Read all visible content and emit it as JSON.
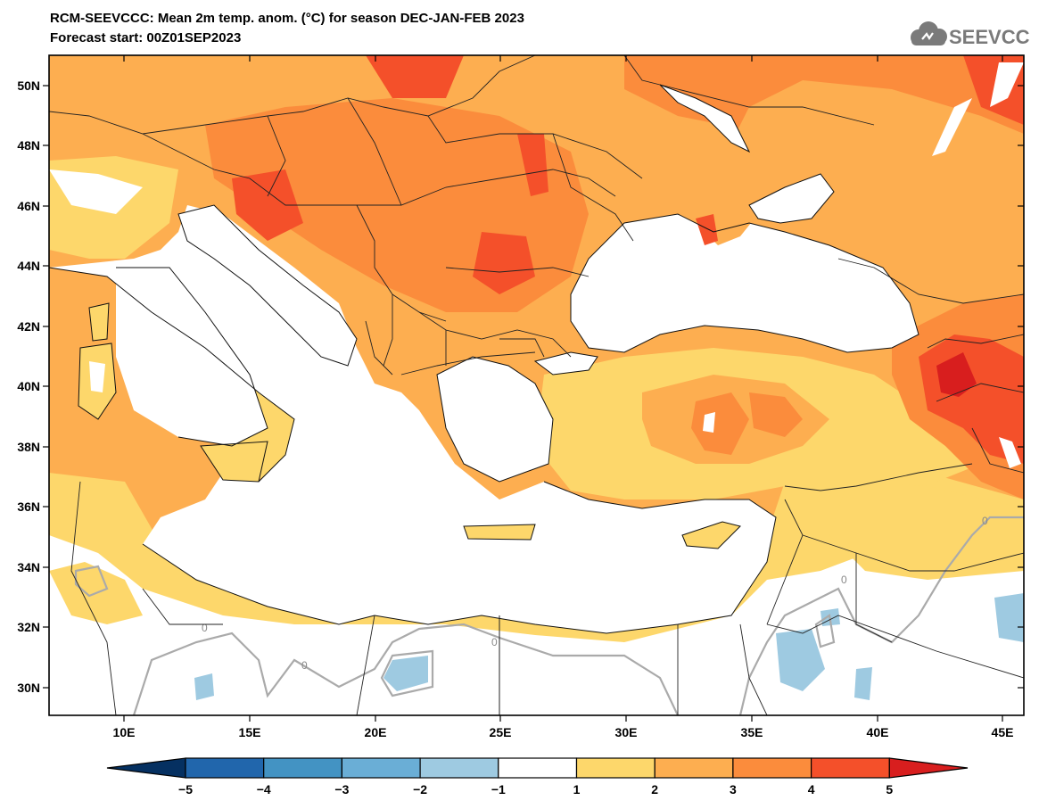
{
  "header": {
    "title_line1": "RCM-SEEVCCC: Mean 2m temp. anom. (°C) for season DEC-JAN-FEB 2023",
    "title_line2": "Forecast start: 00Z01SEP2023"
  },
  "logo": {
    "text": "SEEVCCC",
    "icon": "cloud-icon"
  },
  "map": {
    "lat_ticks": [
      "50N",
      "48N",
      "46N",
      "44N",
      "42N",
      "40N",
      "38N",
      "36N",
      "34N",
      "32N",
      "30N"
    ],
    "lon_ticks": [
      "10E",
      "15E",
      "20E",
      "25E",
      "30E",
      "35E",
      "40E",
      "45E"
    ],
    "contour_label": "0"
  },
  "colorbar": {
    "labels": [
      "−5",
      "−4",
      "−3",
      "−2",
      "−1",
      "1",
      "2",
      "3",
      "4",
      "5"
    ],
    "colors": {
      "below_-5": "#053061",
      "-5_-4": "#2166ac",
      "-4_-3": "#4393c3",
      "-3_-2": "#6aaed6",
      "-2_-1": "#9ecae1",
      "-1_1": "#ffffff",
      "1_2": "#fdd76b",
      "2_3": "#fdae50",
      "3_4": "#fb8c3c",
      "4_5": "#f4502a",
      "above_5": "#d81e1e"
    }
  }
}
